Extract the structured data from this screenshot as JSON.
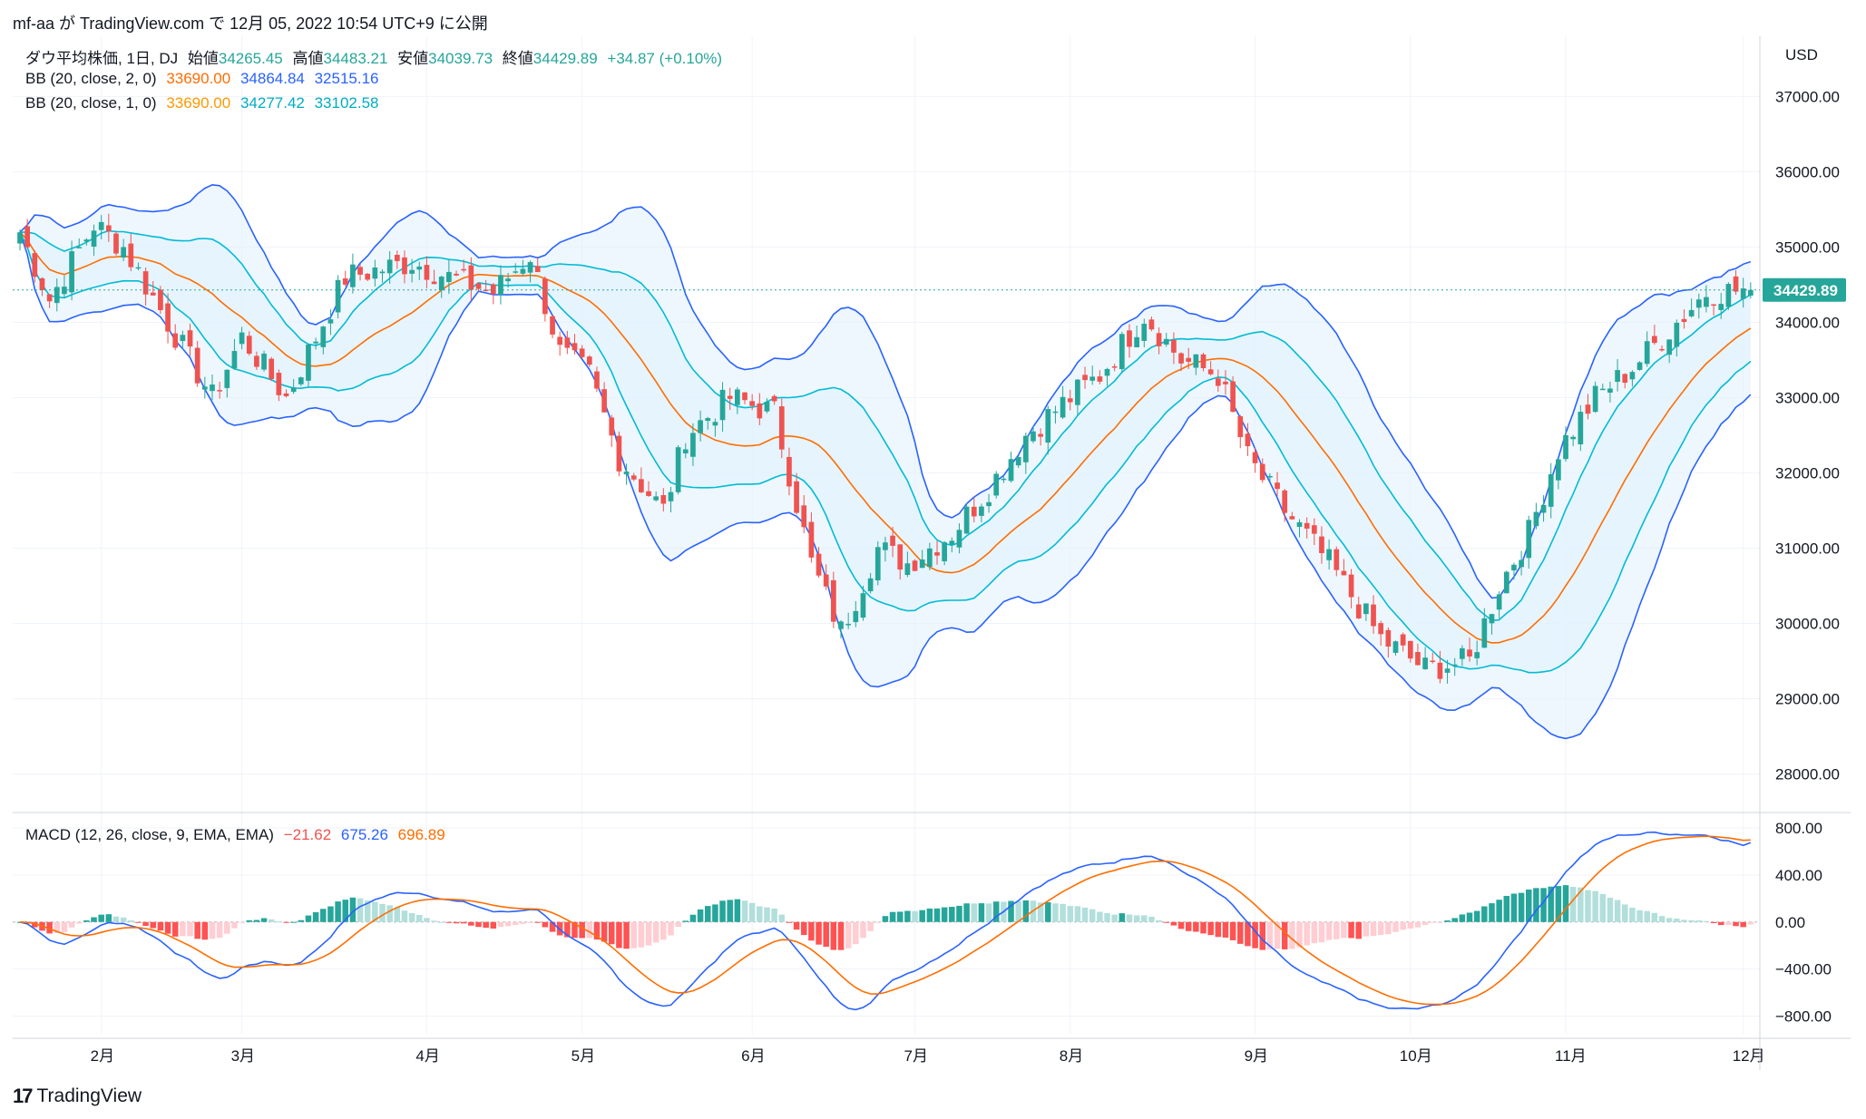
{
  "header": {
    "text": "mf-aa が TradingView.com で 12月 05, 2022 10:54 UTC+9 に公開"
  },
  "legend": {
    "symbol": "ダウ平均株価, 1日, DJ",
    "open_label": "始値",
    "open": "34265.45",
    "high_label": "高値",
    "high": "34483.21",
    "low_label": "安値",
    "low": "34039.73",
    "close_label": "終値",
    "close": "34429.89",
    "change": "+34.87 (+0.10%)",
    "bb2_label": "BB (20, close, 2, 0)",
    "bb2_basis": "33690.00",
    "bb2_upper": "34864.84",
    "bb2_lower": "32515.16",
    "bb1_label": "BB (20, close, 1, 0)",
    "bb1_basis": "33690.00",
    "bb1_upper": "34277.42",
    "bb1_lower": "33102.58",
    "macd_label": "MACD (12, 26, close, 9, EMA, EMA)",
    "macd_hist": "−21.62",
    "macd_line": "675.26",
    "macd_signal": "696.89"
  },
  "currency": "USD",
  "last_price_tag": "34429.89",
  "footer": {
    "brand": "TradingView",
    "logo": "17"
  },
  "colors": {
    "up": "#26a69a",
    "down": "#ef5350",
    "bb2": "#2962ff",
    "bb1": "#00bcd4",
    "basis": "#ff6d00",
    "fill": "#e3f2fd",
    "macd": "#2962ff",
    "signal": "#ff6d00"
  },
  "chart_data": [
    {
      "type": "candlestick",
      "title": "ダウ平均株価, 1日, DJ",
      "ylim": [
        27500,
        37800
      ],
      "y_ticks": [
        "37000.00",
        "36000.00",
        "35000.00",
        "34000.00",
        "33000.00",
        "32000.00",
        "31000.00",
        "30000.00",
        "29000.00",
        "28000.00"
      ],
      "y_tick_values": [
        37000,
        36000,
        35000,
        34000,
        33000,
        32000,
        31000,
        30000,
        29000,
        28000
      ],
      "x_tick_labels": [
        "2月",
        "3月",
        "4月",
        "5月",
        "6月",
        "7月",
        "8月",
        "9月",
        "10月",
        "11月",
        "12月"
      ],
      "x_tick_index": [
        11,
        30,
        55,
        76,
        99,
        121,
        142,
        167,
        188,
        209,
        233
      ],
      "close_anchors": [
        [
          0,
          35200
        ],
        [
          4,
          34300
        ],
        [
          10,
          35300
        ],
        [
          14,
          35000
        ],
        [
          20,
          34000
        ],
        [
          26,
          33000
        ],
        [
          30,
          33800
        ],
        [
          36,
          33000
        ],
        [
          44,
          34600
        ],
        [
          53,
          34800
        ],
        [
          58,
          34600
        ],
        [
          64,
          34400
        ],
        [
          69,
          34900
        ],
        [
          73,
          33600
        ],
        [
          77,
          33300
        ],
        [
          81,
          32200
        ],
        [
          87,
          31500
        ],
        [
          90,
          32500
        ],
        [
          96,
          33000
        ],
        [
          102,
          32800
        ],
        [
          107,
          30800
        ],
        [
          111,
          29900
        ],
        [
          116,
          31000
        ],
        [
          120,
          30800
        ],
        [
          126,
          31200
        ],
        [
          131,
          31800
        ],
        [
          136,
          32500
        ],
        [
          142,
          33000
        ],
        [
          146,
          33300
        ],
        [
          152,
          34100
        ],
        [
          157,
          33500
        ],
        [
          162,
          33300
        ],
        [
          166,
          32200
        ],
        [
          171,
          31500
        ],
        [
          177,
          30800
        ],
        [
          184,
          29800
        ],
        [
          190,
          29400
        ],
        [
          196,
          29500
        ],
        [
          200,
          30500
        ],
        [
          204,
          31200
        ],
        [
          208,
          32300
        ],
        [
          213,
          33000
        ],
        [
          218,
          33400
        ],
        [
          223,
          33900
        ],
        [
          228,
          34400
        ],
        [
          233,
          34430
        ]
      ],
      "last": 34429.89,
      "bollinger": [
        {
          "name": "BB (20, close, 2, 0)",
          "length": 20,
          "mult": 2
        },
        {
          "name": "BB (20, close, 1, 0)",
          "length": 20,
          "mult": 1
        }
      ]
    },
    {
      "type": "macd",
      "title": "MACD (12, 26, close, 9, EMA, EMA)",
      "ylim": [
        -950,
        900
      ],
      "y_ticks": [
        "800.00",
        "400.00",
        "0.00",
        "−400.00",
        "−800.00"
      ],
      "y_tick_values": [
        800,
        400,
        0,
        -400,
        -800
      ],
      "last": {
        "histogram": -21.62,
        "macd": 675.26,
        "signal": 696.89
      }
    }
  ]
}
